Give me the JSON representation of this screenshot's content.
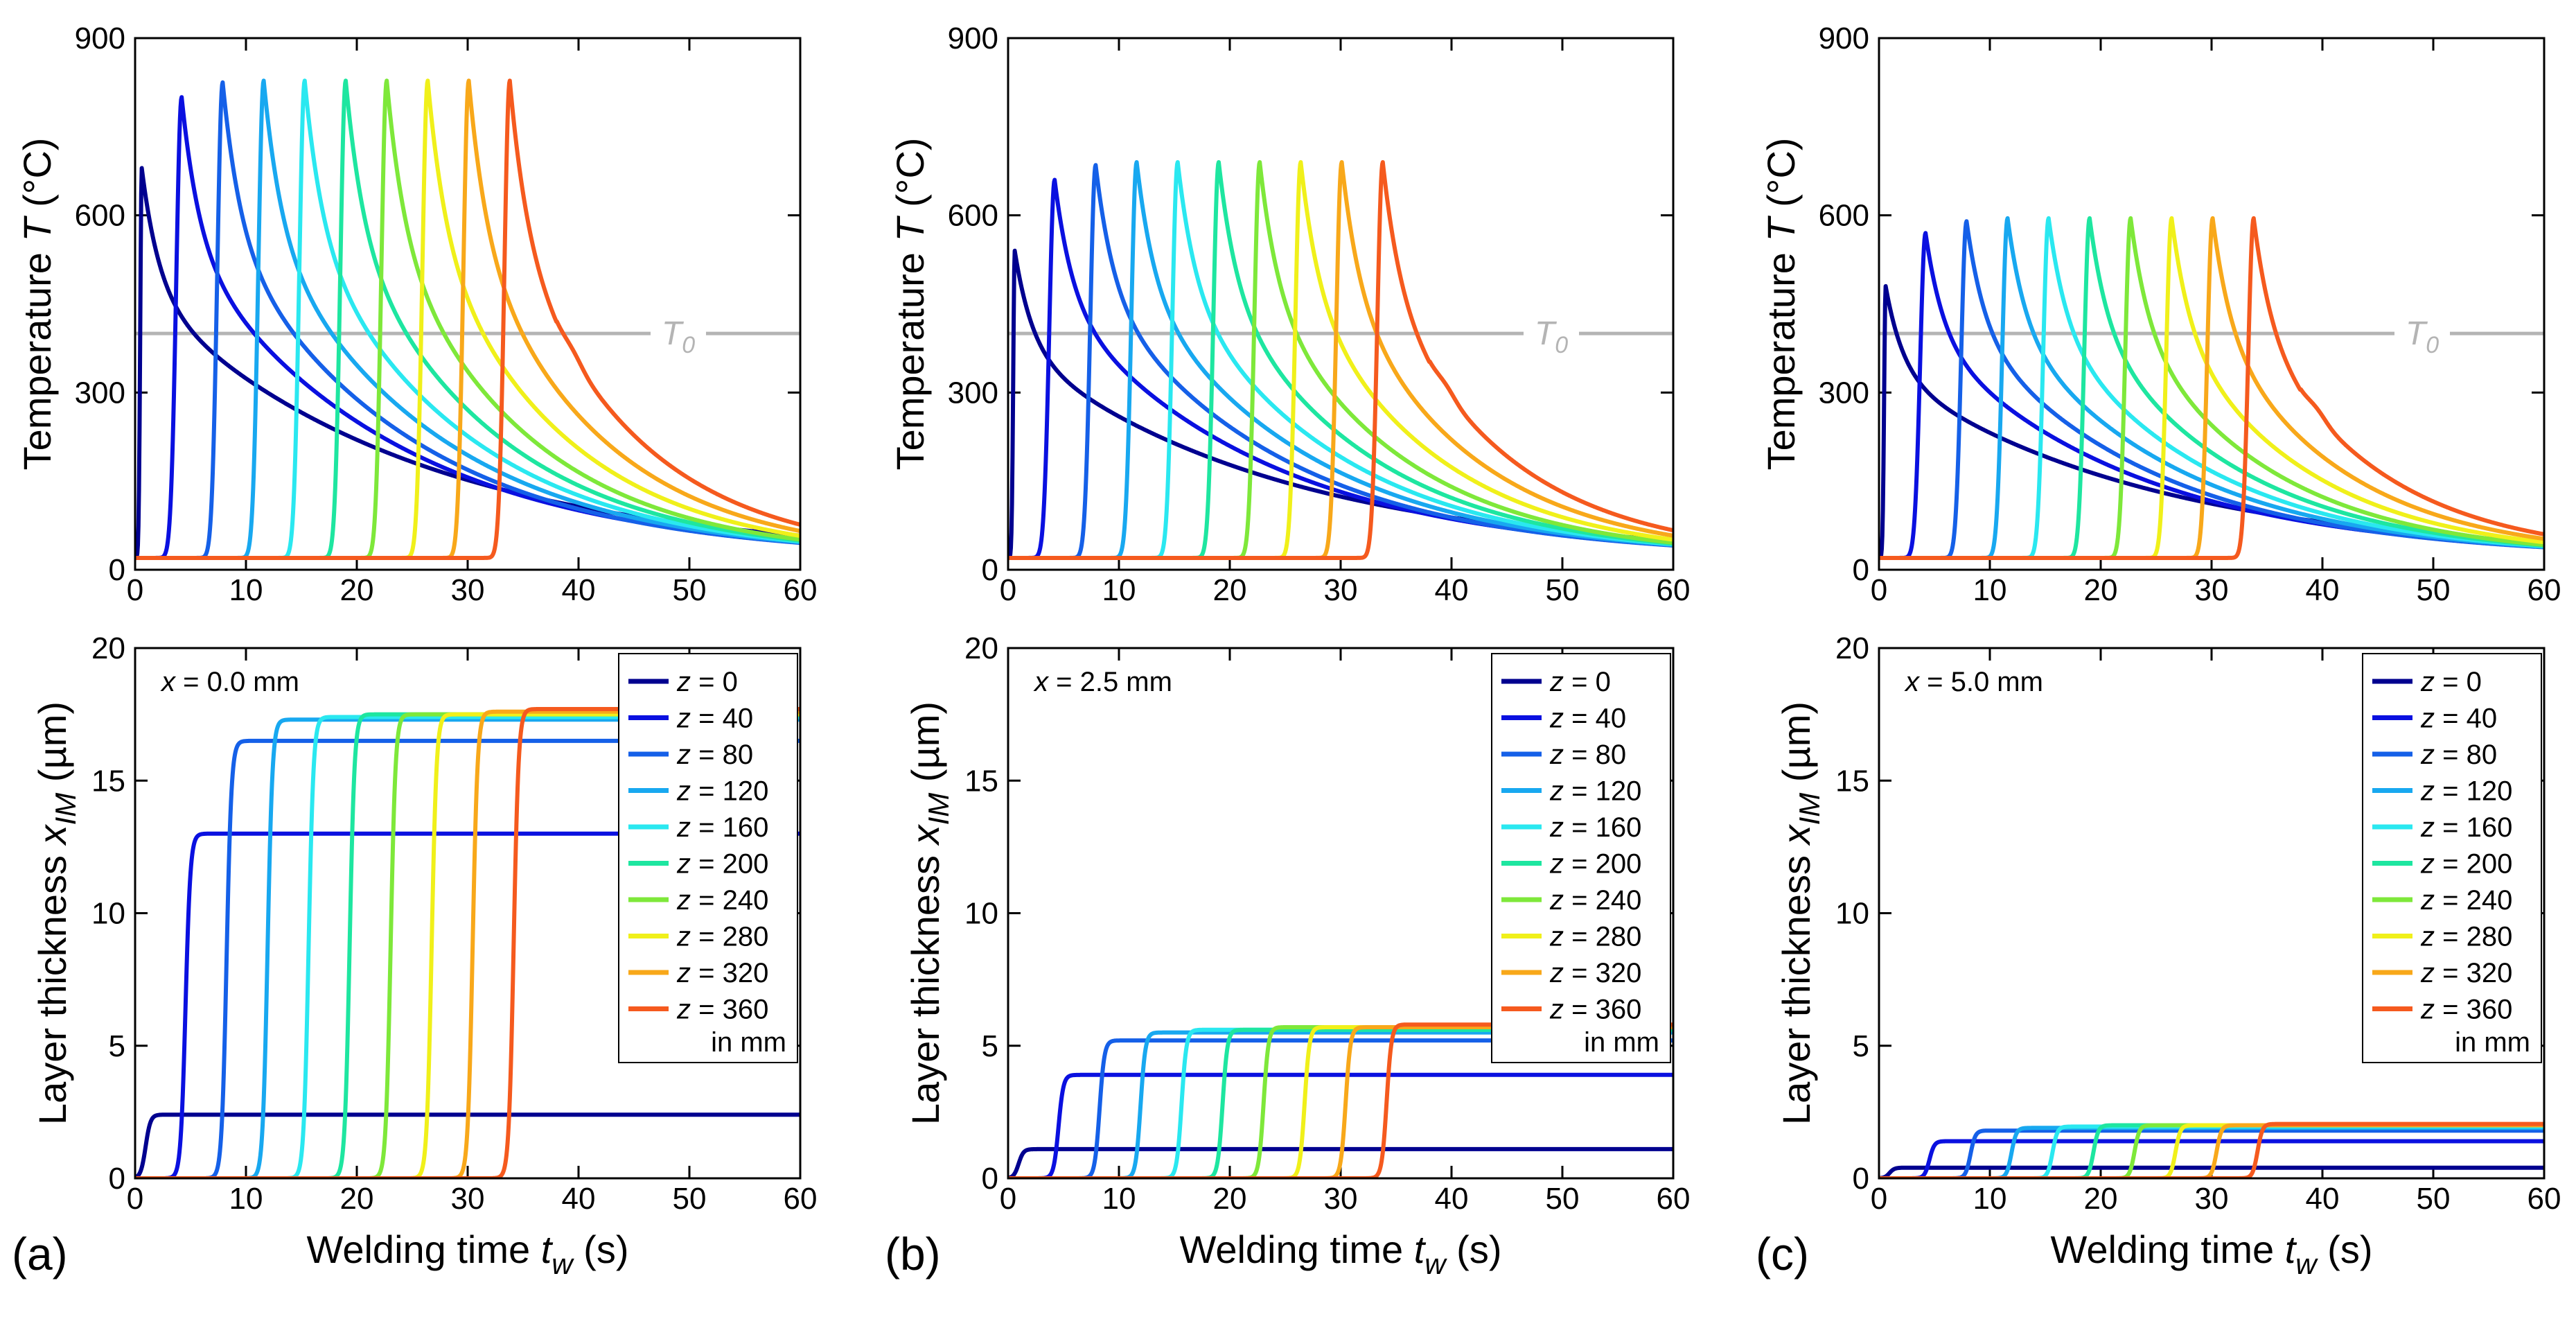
{
  "chart_data": [
    {
      "panel": "a",
      "type": "line",
      "title": "",
      "xlabel": {
        "prefix": "Welding time ",
        "var": "t",
        "sub": "w",
        "suffix": " (s)"
      },
      "xlim": [
        0,
        60
      ],
      "x_ticks": [
        0,
        10,
        20,
        30,
        40,
        50,
        60
      ],
      "temperature": {
        "ylabel": {
          "prefix": "Temperature  ",
          "var": "T",
          "suffix": " (°C)"
        },
        "ylim": [
          0,
          900
        ],
        "y_ticks": [
          0,
          300,
          600,
          900
        ],
        "reference_line": {
          "label": "T",
          "sub": "0",
          "value": 400,
          "color": "#b4b4b4"
        },
        "peak_temperatures": [
          680,
          800,
          825,
          828,
          828,
          828,
          828,
          828,
          828,
          828
        ],
        "decay_tau": [
          24,
          19,
          17,
          16,
          15,
          14,
          13,
          12.5,
          12,
          11.5
        ]
      },
      "layer": {
        "ylabel": {
          "prefix": "Layer thickness  ",
          "var": "x",
          "sub": "IM",
          "suffix": " (µm)"
        },
        "ylim": [
          0,
          20
        ],
        "y_ticks": [
          0,
          5,
          10,
          15,
          20
        ],
        "annotation": {
          "var": "x",
          "text": " = 0.0 mm"
        },
        "final_thickness": [
          2.4,
          13.0,
          16.5,
          17.3,
          17.4,
          17.5,
          17.5,
          17.5,
          17.6,
          17.7
        ]
      }
    },
    {
      "panel": "b",
      "type": "line",
      "title": "",
      "xlabel": {
        "prefix": "Welding time ",
        "var": "t",
        "sub": "w",
        "suffix": " (s)"
      },
      "xlim": [
        0,
        60
      ],
      "x_ticks": [
        0,
        10,
        20,
        30,
        40,
        50,
        60
      ],
      "temperature": {
        "ylabel": {
          "prefix": "Temperature  ",
          "var": "T",
          "suffix": " (°C)"
        },
        "ylim": [
          0,
          900
        ],
        "y_ticks": [
          0,
          300,
          600,
          900
        ],
        "reference_line": {
          "label": "T",
          "sub": "0",
          "value": 400,
          "color": "#b4b4b4"
        },
        "peak_temperatures": [
          540,
          660,
          685,
          690,
          690,
          690,
          690,
          690,
          690,
          690
        ],
        "decay_tau": [
          24,
          19,
          17,
          16,
          15,
          14,
          13,
          12.5,
          12,
          11.5
        ]
      },
      "layer": {
        "ylabel": {
          "prefix": "Layer thickness  ",
          "var": "x",
          "sub": "IM",
          "suffix": " (µm)"
        },
        "ylim": [
          0,
          20
        ],
        "y_ticks": [
          0,
          5,
          10,
          15,
          20
        ],
        "annotation": {
          "var": "x",
          "text": " = 2.5 mm"
        },
        "final_thickness": [
          1.1,
          3.9,
          5.2,
          5.5,
          5.6,
          5.6,
          5.7,
          5.7,
          5.7,
          5.8
        ]
      }
    },
    {
      "panel": "c",
      "type": "line",
      "title": "",
      "xlabel": {
        "prefix": "Welding time ",
        "var": "t",
        "sub": "w",
        "suffix": " (s)"
      },
      "xlim": [
        0,
        60
      ],
      "x_ticks": [
        0,
        10,
        20,
        30,
        40,
        50,
        60
      ],
      "temperature": {
        "ylabel": {
          "prefix": "Temperature  ",
          "var": "T",
          "suffix": " (°C)"
        },
        "ylim": [
          0,
          900
        ],
        "y_ticks": [
          0,
          300,
          600,
          900
        ],
        "reference_line": {
          "label": "T",
          "sub": "0",
          "value": 400,
          "color": "#b4b4b4"
        },
        "peak_temperatures": [
          480,
          570,
          590,
          595,
          595,
          595,
          595,
          595,
          595,
          595
        ],
        "decay_tau": [
          24,
          19,
          17,
          16,
          15,
          14,
          13,
          12.5,
          12,
          11.5
        ]
      },
      "layer": {
        "ylabel": {
          "prefix": "Layer thickness  ",
          "var": "x",
          "sub": "IM",
          "suffix": " (µm)"
        },
        "ylim": [
          0,
          20
        ],
        "y_ticks": [
          0,
          5,
          10,
          15,
          20
        ],
        "annotation": {
          "var": "x",
          "text": " = 5.0 mm"
        },
        "final_thickness": [
          0.4,
          1.4,
          1.8,
          1.9,
          1.95,
          2.0,
          2.0,
          2.0,
          2.0,
          2.05
        ]
      }
    }
  ],
  "series": [
    {
      "name": "z =    0",
      "z": 0,
      "t_peak": 0.6,
      "color": "#00008f"
    },
    {
      "name": "z =   40",
      "z": 40,
      "t_peak": 4.2,
      "color": "#0a10e0"
    },
    {
      "name": "z =   80",
      "z": 80,
      "t_peak": 7.9,
      "color": "#1560e8"
    },
    {
      "name": "z = 120",
      "z": 120,
      "t_peak": 11.6,
      "color": "#18a8f0"
    },
    {
      "name": "z = 160",
      "z": 160,
      "t_peak": 15.3,
      "color": "#2ae8f0"
    },
    {
      "name": "z = 200",
      "z": 200,
      "t_peak": 19.0,
      "color": "#1ee6a0"
    },
    {
      "name": "z = 240",
      "z": 240,
      "t_peak": 22.7,
      "color": "#7ee83a"
    },
    {
      "name": "z = 280",
      "z": 280,
      "t_peak": 26.4,
      "color": "#f0f01a"
    },
    {
      "name": "z = 320",
      "z": 320,
      "t_peak": 30.1,
      "color": "#f8a81a"
    },
    {
      "name": "z = 360",
      "z": 360,
      "t_peak": 33.8,
      "color": "#f55a1e"
    }
  ],
  "legend": {
    "footer": "in mm",
    "placement": "top-right"
  },
  "panel_labels": [
    "(a)",
    "(b)",
    "(c)"
  ],
  "colors": {
    "axis": "#000000",
    "reference": "#b4b4b4",
    "background": "#ffffff"
  }
}
